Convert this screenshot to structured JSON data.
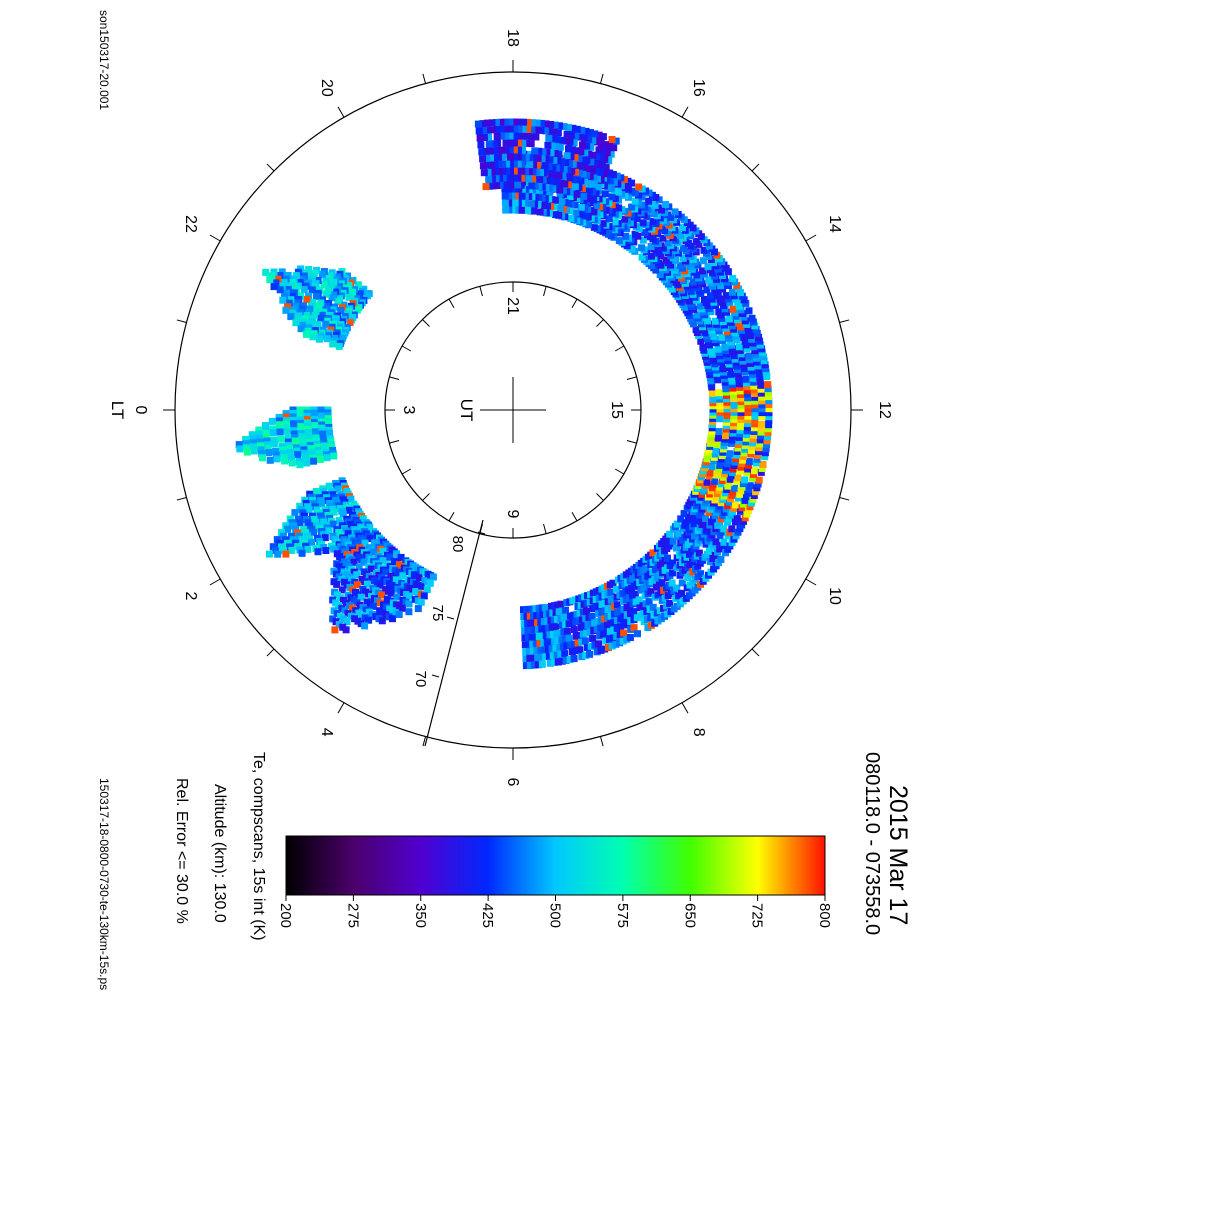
{
  "chart_data": {
    "type": "polar",
    "title": "2015 Mar 17",
    "subtitle": "080118.0 - 073558.0",
    "file_top": "son150317-20.001",
    "file_bottom": "150317-18-0800-0730-te-130km-15s.ps",
    "variable_label": "Te, compscans, 15s int (K)",
    "altitude_label": "Altitude (km): 130.0",
    "error_label": "Rel. Error <= 30.0 %",
    "lt_axis_label": "LT",
    "ut_axis_label": "UT",
    "lt_ticks": [
      "18",
      "16",
      "14",
      "12",
      "10",
      "8",
      "6",
      "4",
      "2",
      "0",
      "22",
      "20"
    ],
    "ut_ticks": [
      "21",
      "15",
      "9",
      "3"
    ],
    "lat_ticks": [
      "80",
      "75",
      "70"
    ],
    "colorbar": {
      "min": 200,
      "max": 800,
      "tick_labels": [
        "200",
        "275",
        "350",
        "425",
        "500",
        "575",
        "650",
        "725",
        "800"
      ],
      "colormap": "rainbow (black-purple-blue-cyan-green-yellow-red)"
    },
    "units": "K",
    "data_regions": [
      {
        "lt_range": [
          6.2,
          18.2
        ],
        "description": "main arc",
        "typical_te_K": 450,
        "hot_band_lt": [
          10.4,
          12.4
        ],
        "hot_te_K": 800
      },
      {
        "lt_range": [
          16.6,
          18.5
        ],
        "typical_te_K": 420
      },
      {
        "lt_range": [
          21.4,
          22.7
        ],
        "typical_te_K": 500
      },
      {
        "lt_range": [
          0.0,
          1.0
        ],
        "typical_te_K": 520
      },
      {
        "lt_range": [
          1.5,
          2.6
        ],
        "typical_te_K": 480
      },
      {
        "lt_range": [
          2.5,
          4.3
        ],
        "typical_te_K": 450
      }
    ]
  }
}
